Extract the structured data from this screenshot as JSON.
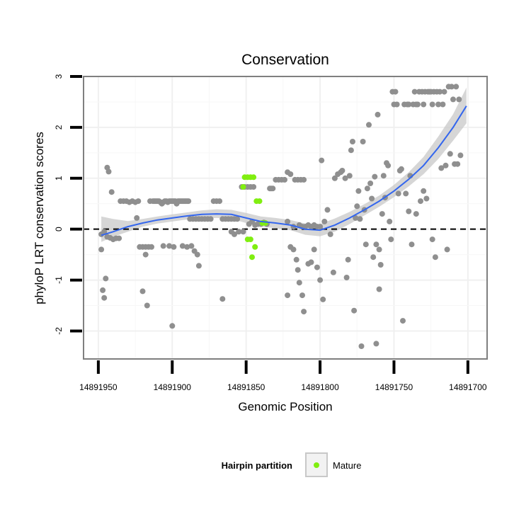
{
  "chart_data": {
    "type": "scatter",
    "title": "Conservation",
    "xlabel": "Genomic Position",
    "ylabel": "phyloP LRT conservation scores",
    "x_reversed": true,
    "xlim": [
      14891960,
      14891687
    ],
    "ylim": [
      -2.55,
      3.0
    ],
    "x_ticks": [
      14891950,
      14891900,
      14891850,
      14891800,
      14891750,
      14891700
    ],
    "x_tick_labels": [
      "14891950",
      "14891900",
      "14891850",
      "14891800",
      "14891750",
      "14891700"
    ],
    "y_ticks": [
      -2,
      -1,
      0,
      1,
      2,
      3
    ],
    "y_tick_labels": [
      "-2",
      "-1",
      "0",
      "1",
      "2",
      "3"
    ],
    "reference_line": {
      "y": 0,
      "style": "dashed"
    },
    "legend": {
      "title": "Hairpin partition",
      "entries": [
        {
          "label": "Mature",
          "color": "#80ee10"
        }
      ]
    },
    "colors": {
      "other": "#8f8f8f",
      "mature": "#80ee10",
      "smooth": "#3366ee",
      "ribbon": "#c8c8c8",
      "panel_border": "#7f7f7f",
      "grid": "#f0f0f0"
    },
    "series": [
      {
        "name": "Other",
        "points": [
          [
            14891948,
            -0.4
          ],
          [
            14891947,
            -1.2
          ],
          [
            14891946,
            -1.35
          ],
          [
            14891945,
            -0.97
          ],
          [
            14891944,
            1.21
          ],
          [
            14891943,
            1.13
          ],
          [
            14891941,
            0.73
          ],
          [
            14891948,
            -0.1
          ],
          [
            14891946,
            -0.05
          ],
          [
            14891944,
            -0.15
          ],
          [
            14891942,
            -0.17
          ],
          [
            14891940,
            -0.2
          ],
          [
            14891938,
            -0.18
          ],
          [
            14891936,
            -0.18
          ],
          [
            14891935,
            0.55
          ],
          [
            14891933,
            0.55
          ],
          [
            14891931,
            0.55
          ],
          [
            14891929,
            0.53
          ],
          [
            14891927,
            0.55
          ],
          [
            14891925,
            0.53
          ],
          [
            14891924,
            0.22
          ],
          [
            14891923,
            0.55
          ],
          [
            14891922,
            -0.35
          ],
          [
            14891920,
            -0.35
          ],
          [
            14891918,
            -0.35
          ],
          [
            14891916,
            -0.35
          ],
          [
            14891915,
            0.55
          ],
          [
            14891913,
            0.55
          ],
          [
            14891912,
            0.55
          ],
          [
            14891911,
            0.55
          ],
          [
            14891910,
            0.55
          ],
          [
            14891909,
            0.55
          ],
          [
            14891908,
            0.53
          ],
          [
            14891907,
            0.5
          ],
          [
            14891906,
            0.53
          ],
          [
            14891905,
            0.55
          ],
          [
            14891904,
            0.55
          ],
          [
            14891903,
            0.53
          ],
          [
            14891902,
            0.55
          ],
          [
            14891901,
            0.55
          ],
          [
            14891900,
            0.55
          ],
          [
            14891899,
            0.55
          ],
          [
            14891898,
            0.55
          ],
          [
            14891897,
            0.5
          ],
          [
            14891896,
            0.55
          ],
          [
            14891895,
            0.55
          ],
          [
            14891894,
            0.55
          ],
          [
            14891893,
            0.55
          ],
          [
            14891892,
            0.55
          ],
          [
            14891891,
            0.55
          ],
          [
            14891890,
            0.55
          ],
          [
            14891889,
            0.55
          ],
          [
            14891918,
            -0.5
          ],
          [
            14891914,
            -0.35
          ],
          [
            14891906,
            -0.33
          ],
          [
            14891902,
            -0.33
          ],
          [
            14891899,
            -0.35
          ],
          [
            14891893,
            -0.33
          ],
          [
            14891890,
            -0.35
          ],
          [
            14891887,
            -0.33
          ],
          [
            14891920,
            -1.22
          ],
          [
            14891917,
            -1.5
          ],
          [
            14891900,
            -1.9
          ],
          [
            14891888,
            0.2
          ],
          [
            14891886,
            0.2
          ],
          [
            14891884,
            0.2
          ],
          [
            14891882,
            0.2
          ],
          [
            14891880,
            0.2
          ],
          [
            14891878,
            0.2
          ],
          [
            14891876,
            0.2
          ],
          [
            14891874,
            0.2
          ],
          [
            14891872,
            0.55
          ],
          [
            14891870,
            0.55
          ],
          [
            14891868,
            0.55
          ],
          [
            14891866,
            0.2
          ],
          [
            14891864,
            0.2
          ],
          [
            14891862,
            0.2
          ],
          [
            14891860,
            0.2
          ],
          [
            14891858,
            0.2
          ],
          [
            14891856,
            0.2
          ],
          [
            14891853,
            0.83
          ],
          [
            14891851,
            0.83
          ],
          [
            14891849,
            0.83
          ],
          [
            14891847,
            0.83
          ],
          [
            14891845,
            0.83
          ],
          [
            14891885,
            -0.43
          ],
          [
            14891883,
            -0.5
          ],
          [
            14891882,
            -0.72
          ],
          [
            14891866,
            -1.37
          ],
          [
            14891860,
            -0.05
          ],
          [
            14891858,
            -0.1
          ],
          [
            14891855,
            -0.05
          ],
          [
            14891852,
            -0.05
          ],
          [
            14891848,
            0.1
          ],
          [
            14891846,
            0.15
          ],
          [
            14891844,
            0.08
          ],
          [
            14891842,
            0.1
          ],
          [
            14891840,
            0.1
          ],
          [
            14891838,
            0.13
          ],
          [
            14891836,
            0.1
          ],
          [
            14891834,
            0.8
          ],
          [
            14891833,
            0.8
          ],
          [
            14891832,
            0.8
          ],
          [
            14891830,
            0.97
          ],
          [
            14891828,
            0.97
          ],
          [
            14891826,
            0.97
          ],
          [
            14891824,
            0.97
          ],
          [
            14891822,
            1.12
          ],
          [
            14891820,
            1.08
          ],
          [
            14891817,
            0.97
          ],
          [
            14891815,
            0.97
          ],
          [
            14891813,
            0.97
          ],
          [
            14891811,
            0.97
          ],
          [
            14891822,
            0.15
          ],
          [
            14891818,
            0.05
          ],
          [
            14891814,
            0.08
          ],
          [
            14891812,
            0.05
          ],
          [
            14891810,
            0.05
          ],
          [
            14891808,
            0.08
          ],
          [
            14891806,
            0.05
          ],
          [
            14891804,
            0.08
          ],
          [
            14891802,
            0.05
          ],
          [
            14891800,
            0.05
          ],
          [
            14891822,
            -1.3
          ],
          [
            14891820,
            -0.35
          ],
          [
            14891818,
            -0.4
          ],
          [
            14891816,
            -0.6
          ],
          [
            14891815,
            -0.8
          ],
          [
            14891814,
            -1.05
          ],
          [
            14891812,
            -1.3
          ],
          [
            14891811,
            -1.62
          ],
          [
            14891808,
            -0.68
          ],
          [
            14891806,
            -0.65
          ],
          [
            14891804,
            -0.4
          ],
          [
            14891802,
            -0.75
          ],
          [
            14891800,
            -1.0
          ],
          [
            14891798,
            -1.38
          ],
          [
            14891799,
            1.35
          ],
          [
            14891797,
            0.15
          ],
          [
            14891795,
            0.38
          ],
          [
            14891793,
            -0.1
          ],
          [
            14891791,
            -0.85
          ],
          [
            14891790,
            1.0
          ],
          [
            14891788,
            1.08
          ],
          [
            14891786,
            1.12
          ],
          [
            14891785,
            1.15
          ],
          [
            14891783,
            1.0
          ],
          [
            14891782,
            -0.95
          ],
          [
            14891781,
            -0.6
          ],
          [
            14891780,
            1.05
          ],
          [
            14891779,
            1.55
          ],
          [
            14891778,
            1.72
          ],
          [
            14891777,
            -1.6
          ],
          [
            14891776,
            0.22
          ],
          [
            14891775,
            0.45
          ],
          [
            14891774,
            0.75
          ],
          [
            14891773,
            0.2
          ],
          [
            14891772,
            -2.3
          ],
          [
            14891771,
            1.72
          ],
          [
            14891770,
            0.38
          ],
          [
            14891769,
            -0.3
          ],
          [
            14891768,
            0.8
          ],
          [
            14891767,
            2.05
          ],
          [
            14891766,
            0.9
          ],
          [
            14891765,
            0.6
          ],
          [
            14891764,
            -0.55
          ],
          [
            14891763,
            1.03
          ],
          [
            14891762,
            -2.25
          ],
          [
            14891761,
            2.25
          ],
          [
            14891760,
            -1.18
          ],
          [
            14891759,
            -0.7
          ],
          [
            14891758,
            0.3
          ],
          [
            14891757,
            1.05
          ],
          [
            14891756,
            0.62
          ],
          [
            14891755,
            1.3
          ],
          [
            14891754,
            1.25
          ],
          [
            14891753,
            0.15
          ],
          [
            14891752,
            -0.2
          ],
          [
            14891751,
            2.7
          ],
          [
            14891750,
            2.45
          ],
          [
            14891749,
            2.7
          ],
          [
            14891748,
            2.45
          ],
          [
            14891747,
            0.7
          ],
          [
            14891746,
            1.15
          ],
          [
            14891745,
            1.18
          ],
          [
            14891744,
            -1.8
          ],
          [
            14891743,
            2.45
          ],
          [
            14891742,
            0.7
          ],
          [
            14891741,
            2.45
          ],
          [
            14891740,
            2.45
          ],
          [
            14891739,
            1.05
          ],
          [
            14891738,
            -0.3
          ],
          [
            14891737,
            2.45
          ],
          [
            14891736,
            2.7
          ],
          [
            14891735,
            2.45
          ],
          [
            14891734,
            2.45
          ],
          [
            14891733,
            2.7
          ],
          [
            14891732,
            0.55
          ],
          [
            14891731,
            2.7
          ],
          [
            14891730,
            2.45
          ],
          [
            14891729,
            2.7
          ],
          [
            14891728,
            0.6
          ],
          [
            14891727,
            2.7
          ],
          [
            14891726,
            2.7
          ],
          [
            14891725,
            2.7
          ],
          [
            14891724,
            2.45
          ],
          [
            14891723,
            2.7
          ],
          [
            14891722,
            -0.55
          ],
          [
            14891721,
            2.7
          ],
          [
            14891720,
            2.45
          ],
          [
            14891719,
            2.7
          ],
          [
            14891718,
            1.2
          ],
          [
            14891717,
            2.45
          ],
          [
            14891716,
            2.7
          ],
          [
            14891715,
            1.25
          ],
          [
            14891714,
            -0.4
          ],
          [
            14891713,
            2.8
          ],
          [
            14891712,
            1.48
          ],
          [
            14891711,
            2.8
          ],
          [
            14891710,
            2.55
          ],
          [
            14891709,
            1.28
          ],
          [
            14891708,
            2.8
          ],
          [
            14891707,
            1.28
          ],
          [
            14891706,
            2.55
          ],
          [
            14891705,
            1.45
          ],
          [
            14891760,
            -0.4
          ],
          [
            14891762,
            -0.3
          ],
          [
            14891740,
            0.35
          ],
          [
            14891735,
            0.3
          ],
          [
            14891730,
            0.75
          ],
          [
            14891724,
            -0.2
          ]
        ]
      },
      {
        "name": "Mature",
        "points": [
          [
            14891852,
            0.83
          ],
          [
            14891851,
            1.02
          ],
          [
            14891849,
            1.02
          ],
          [
            14891847,
            1.02
          ],
          [
            14891845,
            1.02
          ],
          [
            14891843,
            0.55
          ],
          [
            14891841,
            0.55
          ],
          [
            14891839,
            0.12
          ],
          [
            14891837,
            0.12
          ],
          [
            14891849,
            -0.2
          ],
          [
            14891847,
            -0.2
          ],
          [
            14891846,
            -0.55
          ],
          [
            14891844,
            -0.35
          ]
        ]
      }
    ],
    "smooth": {
      "x": [
        14891948,
        14891940,
        14891930,
        14891920,
        14891910,
        14891900,
        14891890,
        14891880,
        14891870,
        14891860,
        14891850,
        14891840,
        14891830,
        14891820,
        14891810,
        14891800,
        14891790,
        14891780,
        14891770,
        14891760,
        14891750,
        14891740,
        14891730,
        14891720,
        14891710,
        14891701
      ],
      "y": [
        -0.12,
        -0.05,
        0.05,
        0.12,
        0.18,
        0.22,
        0.26,
        0.29,
        0.3,
        0.29,
        0.22,
        0.15,
        0.12,
        0.08,
        0.0,
        -0.02,
        0.08,
        0.22,
        0.38,
        0.55,
        0.75,
        0.98,
        1.25,
        1.6,
        2.0,
        2.42
      ],
      "lower": [
        -0.25,
        -0.15,
        -0.05,
        0.05,
        0.11,
        0.15,
        0.19,
        0.21,
        0.22,
        0.2,
        0.12,
        0.05,
        0.02,
        -0.02,
        -0.11,
        -0.14,
        -0.05,
        0.1,
        0.27,
        0.44,
        0.63,
        0.84,
        1.08,
        1.38,
        1.74,
        2.08
      ],
      "upper": [
        0.25,
        0.2,
        0.16,
        0.2,
        0.25,
        0.29,
        0.33,
        0.37,
        0.39,
        0.38,
        0.32,
        0.25,
        0.22,
        0.18,
        0.11,
        0.1,
        0.21,
        0.34,
        0.49,
        0.66,
        0.87,
        1.12,
        1.42,
        1.82,
        2.26,
        2.78
      ]
    }
  }
}
